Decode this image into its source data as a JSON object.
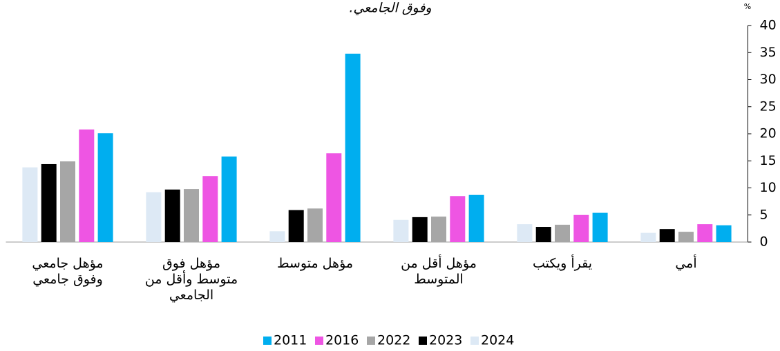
{
  "chart_data": {
    "type": "bar",
    "title": "وفوق الجامعي.",
    "y_unit": "%",
    "categories": [
      "مؤهل جامعي\nوفوق جامعي",
      "مؤهل فوق\nمتوسط  وأقل من\nالجامعي",
      "مؤهل متوسط",
      "مؤهل أقل من\nالمتوسط",
      "يقرأ ويكتب",
      "أمي"
    ],
    "series": [
      {
        "name": "2011",
        "color": "#00aeef",
        "values": [
          20.1,
          15.8,
          34.8,
          8.7,
          5.4,
          3.1
        ]
      },
      {
        "name": "2016",
        "color": "#ee55e3",
        "values": [
          20.8,
          12.2,
          16.4,
          8.5,
          5.0,
          3.3
        ]
      },
      {
        "name": "2022",
        "color": "#a6a6a6",
        "values": [
          14.9,
          9.8,
          6.2,
          4.7,
          3.2,
          1.9
        ]
      },
      {
        "name": "2023",
        "color": "#000000",
        "values": [
          14.4,
          9.7,
          5.9,
          4.6,
          2.8,
          2.4
        ]
      },
      {
        "name": "2024",
        "color": "#dde9f5",
        "values": [
          13.8,
          9.2,
          2.0,
          4.1,
          3.3,
          1.7
        ]
      }
    ],
    "ylim": [
      0,
      40
    ],
    "yticks": [
      0,
      5,
      10,
      15,
      20,
      25,
      30,
      35,
      40
    ],
    "grid": false,
    "legend": "bottom"
  }
}
